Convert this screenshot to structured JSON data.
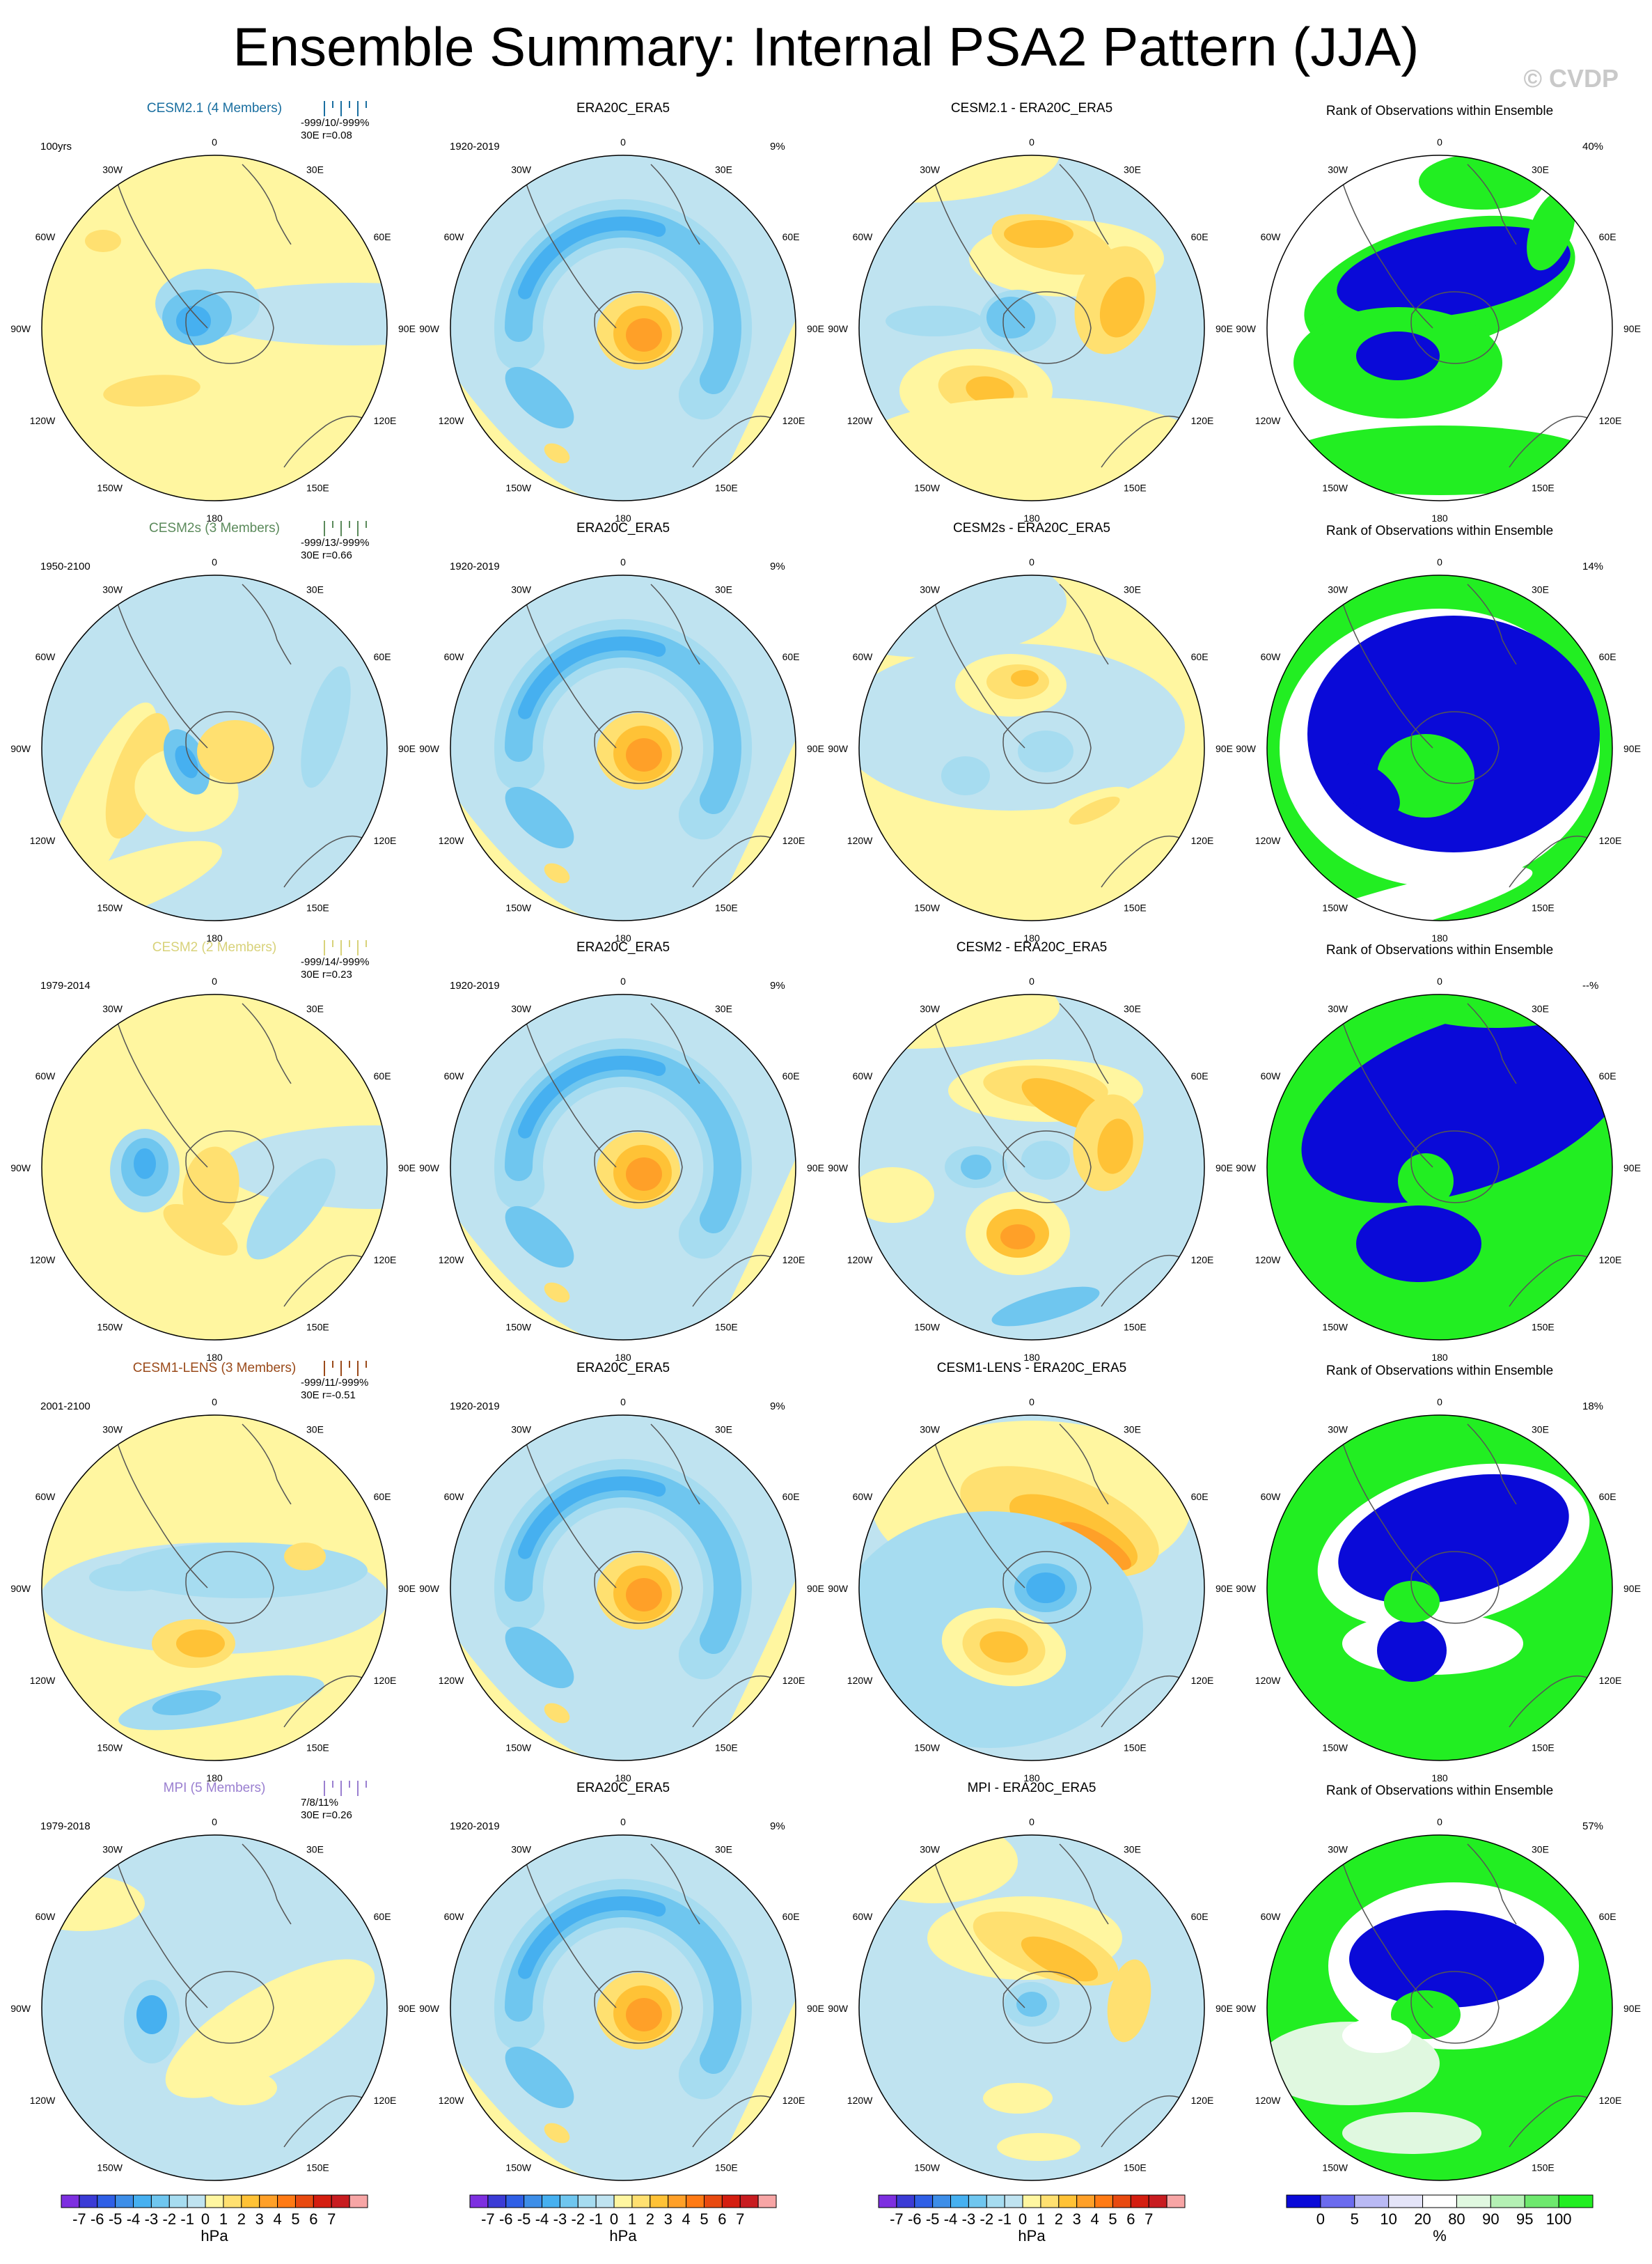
{
  "title": "Ensemble Summary: Internal PSA2 Pattern (JJA)",
  "watermark": "© CVDP",
  "lon_labels": [
    "0",
    "30E",
    "60E",
    "90E",
    "120E",
    "150E",
    "180",
    "150W",
    "120W",
    "90W",
    "60W",
    "30W"
  ],
  "rows": [
    {
      "model": "CESM2.1 (4 Members)",
      "model_color": "#1a6fa0",
      "period": "100yrs",
      "stats1": "-999/10/-999%",
      "stats2": "30E r=0.08",
      "diff_title": "CESM2.1 - ERA20C_ERA5",
      "rank_pct": "40%"
    },
    {
      "model": "CESM2s (3 Members)",
      "model_color": "#5b8a5b",
      "period": "1950-2100",
      "stats1": "-999/13/-999%",
      "stats2": "30E r=0.66",
      "diff_title": "CESM2s - ERA20C_ERA5",
      "rank_pct": "14%"
    },
    {
      "model": "CESM2 (2 Members)",
      "model_color": "#d8d27a",
      "period": "1979-2014",
      "stats1": "-999/14/-999%",
      "stats2": "30E r=0.23",
      "diff_title": "CESM2 - ERA20C_ERA5",
      "rank_pct": "--%"
    },
    {
      "model": "CESM1-LENS (3 Members)",
      "model_color": "#9a4a1a",
      "period": "2001-2100",
      "stats1": "-999/11/-999%",
      "stats2": "30E r=-0.51",
      "diff_title": "CESM1-LENS - ERA20C_ERA5",
      "rank_pct": "18%"
    },
    {
      "model": "MPI (5 Members)",
      "model_color": "#9a7fd0",
      "period": "1979-2018",
      "stats1": "7/8/11%",
      "stats2": "30E r=0.26",
      "diff_title": "MPI - ERA20C_ERA5",
      "rank_pct": "57%"
    }
  ],
  "obs": {
    "title": "ERA20C_ERA5",
    "period": "1920-2019",
    "pct": "9%"
  },
  "rank_title": "Rank of Observations within Ensemble",
  "colorbar_hpa": {
    "labels": [
      "-7",
      "-6",
      "-5",
      "-4",
      "-3",
      "-2",
      "-1",
      "0",
      "1",
      "2",
      "3",
      "4",
      "5",
      "6",
      "7"
    ],
    "unit": "hPa",
    "colors": [
      "#7d2fe0",
      "#3b3bd6",
      "#2f5fe6",
      "#3d8ee8",
      "#46b0f0",
      "#6fc6ef",
      "#a6dcf0",
      "#bfe3f0",
      "#fff6a0",
      "#ffe070",
      "#ffc236",
      "#ffa028",
      "#ff7a14",
      "#e84a10",
      "#d41e10",
      "#c81c20",
      "#f7a5a5"
    ]
  },
  "colorbar_rank": {
    "labels": [
      "0",
      "5",
      "10",
      "20",
      "80",
      "90",
      "95",
      "100"
    ],
    "unit": "%",
    "colors": [
      "#0a0ad8",
      "#6b6bee",
      "#b9b9f4",
      "#e4e4f8",
      "#ffffff",
      "#e0f8e0",
      "#b4f0b4",
      "#6ee86e",
      "#22ee22"
    ]
  },
  "chart_data": {
    "type": "heatmap",
    "title": "Ensemble Summary: Internal PSA2 Pattern (JJA)",
    "projection": "south-polar stereographic",
    "layout": {
      "rows": 5,
      "columns": [
        "model",
        "observations",
        "difference",
        "rank"
      ]
    },
    "value_units": "hPa",
    "contour_levels": [
      -7,
      -6,
      -5,
      -4,
      -3,
      -2,
      -1,
      0,
      1,
      2,
      3,
      4,
      5,
      6,
      7
    ],
    "rank_levels": [
      0,
      5,
      10,
      20,
      80,
      90,
      95,
      100
    ],
    "rank_units": "%"
  }
}
